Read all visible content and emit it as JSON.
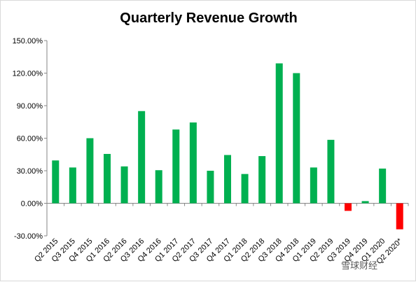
{
  "chart_data": {
    "type": "bar",
    "title": "Quarterly Revenue Growth",
    "xlabel": "",
    "ylabel": "",
    "ylim": [
      -30,
      150
    ],
    "yticks": [
      -30,
      0,
      30,
      60,
      90,
      120,
      150
    ],
    "ytick_labels": [
      "-30.00%",
      "0.00%",
      "30.00%",
      "60.00%",
      "90.00%",
      "120.00%",
      "150.00%"
    ],
    "categories": [
      "Q2 2015",
      "Q3 2015",
      "Q4 2015",
      "Q1 2016",
      "Q2 2016",
      "Q3 2016",
      "Q4 2016",
      "Q1 2017",
      "Q2 2017",
      "Q3 2017",
      "Q4 2017",
      "Q1 2018",
      "Q2 2018",
      "Q3 2018",
      "Q4 2018",
      "Q1 2019",
      "Q2 2019",
      "Q3 2019",
      "Q4 2019",
      "Q1 2020",
      "Q2 2020*"
    ],
    "values": [
      39.5,
      33,
      60,
      45.5,
      34,
      85,
      30.5,
      68,
      74.5,
      30,
      44.5,
      27,
      43.5,
      129,
      120,
      33,
      58.5,
      -7,
      2,
      32,
      -24
    ],
    "grid": false,
    "colors": {
      "positive": "#00b050",
      "negative": "#ff0000",
      "axis": "#868686"
    }
  },
  "watermark": "雪球财经"
}
